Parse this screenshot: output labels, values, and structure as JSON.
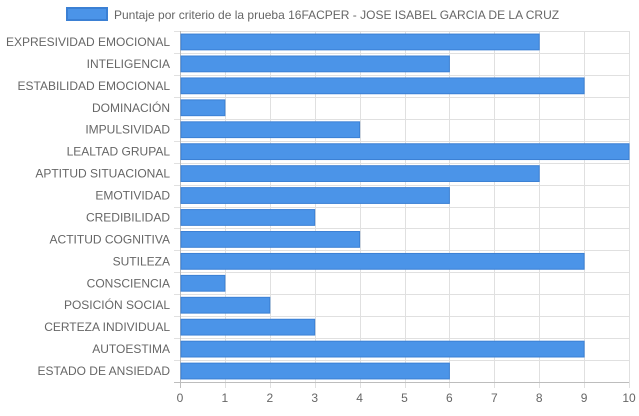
{
  "chart_data": {
    "type": "bar",
    "orientation": "horizontal",
    "categories": [
      "EXPRESIVIDAD EMOCIONAL",
      "INTELIGENCIA",
      "ESTABILIDAD EMOCIONAL",
      "DOMINACIÓN",
      "IMPULSIVIDAD",
      "LEALTAD GRUPAL",
      "APTITUD SITUACIONAL",
      "EMOTIVIDAD",
      "CREDIBILIDAD",
      "ACTITUD COGNITIVA",
      "SUTILEZA",
      "CONSCIENCIA",
      "POSICIÓN SOCIAL",
      "CERTEZA INDIVIDUAL",
      "AUTOESTIMA",
      "ESTADO DE ANSIEDAD"
    ],
    "series": [
      {
        "name": "Puntaje por criterio de la prueba 16FACPER - JOSE ISABEL GARCIA DE LA CRUZ",
        "values": [
          8,
          6,
          9,
          1,
          4,
          10,
          8,
          6,
          3,
          4,
          9,
          1,
          2,
          3,
          9,
          6
        ],
        "color": "#4b94e8",
        "border_color": "#3b80d4"
      }
    ],
    "xlim": [
      0,
      10
    ],
    "x_ticks": [
      "0",
      "1",
      "2",
      "3",
      "4",
      "5",
      "6",
      "7",
      "8",
      "9",
      "10"
    ],
    "grid": true,
    "legend_position": "top"
  }
}
